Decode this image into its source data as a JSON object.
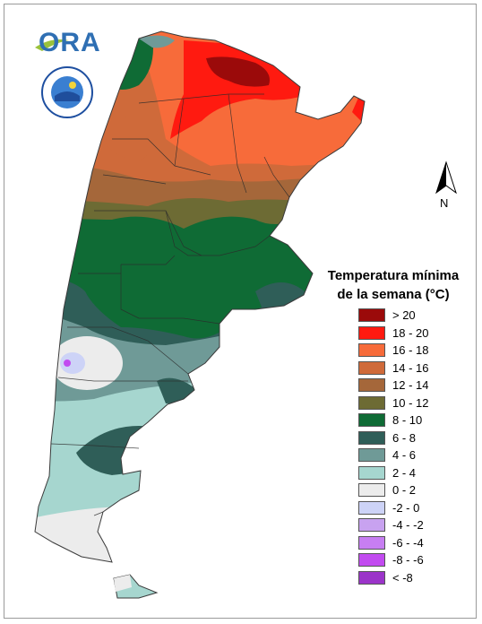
{
  "logo": {
    "text": "ORA"
  },
  "north_arrow": {
    "label": "N"
  },
  "legend": {
    "title_line1": "Temperatura mínima",
    "title_line2": "de la semana (°C)",
    "items": [
      {
        "label": "> 20",
        "color": "#9b0a0a"
      },
      {
        "label": "18 - 20",
        "color": "#ff1a10"
      },
      {
        "label": "16 - 18",
        "color": "#f76b3a"
      },
      {
        "label": "14 - 16",
        "color": "#cf6a3a"
      },
      {
        "label": "12 - 14",
        "color": "#a5673a"
      },
      {
        "label": "10 - 12",
        "color": "#6d6b34"
      },
      {
        "label": "8 - 10",
        "color": "#0f6b35"
      },
      {
        "label": "6 - 8",
        "color": "#2f5e58"
      },
      {
        "label": "4 - 6",
        "color": "#6f9a97"
      },
      {
        "label": "2 - 4",
        "color": "#a6d6cf"
      },
      {
        "label": "0 - 2",
        "color": "#ececec"
      },
      {
        "label": "-2 - 0",
        "color": "#cdd3f7"
      },
      {
        "label": "-4 - -2",
        "color": "#c8a2f0"
      },
      {
        "label": "-6 - -4",
        "color": "#c77ef2"
      },
      {
        "label": "-8 - -6",
        "color": "#c24bf0"
      },
      {
        "label": "< -8",
        "color": "#9b34c9"
      }
    ]
  }
}
